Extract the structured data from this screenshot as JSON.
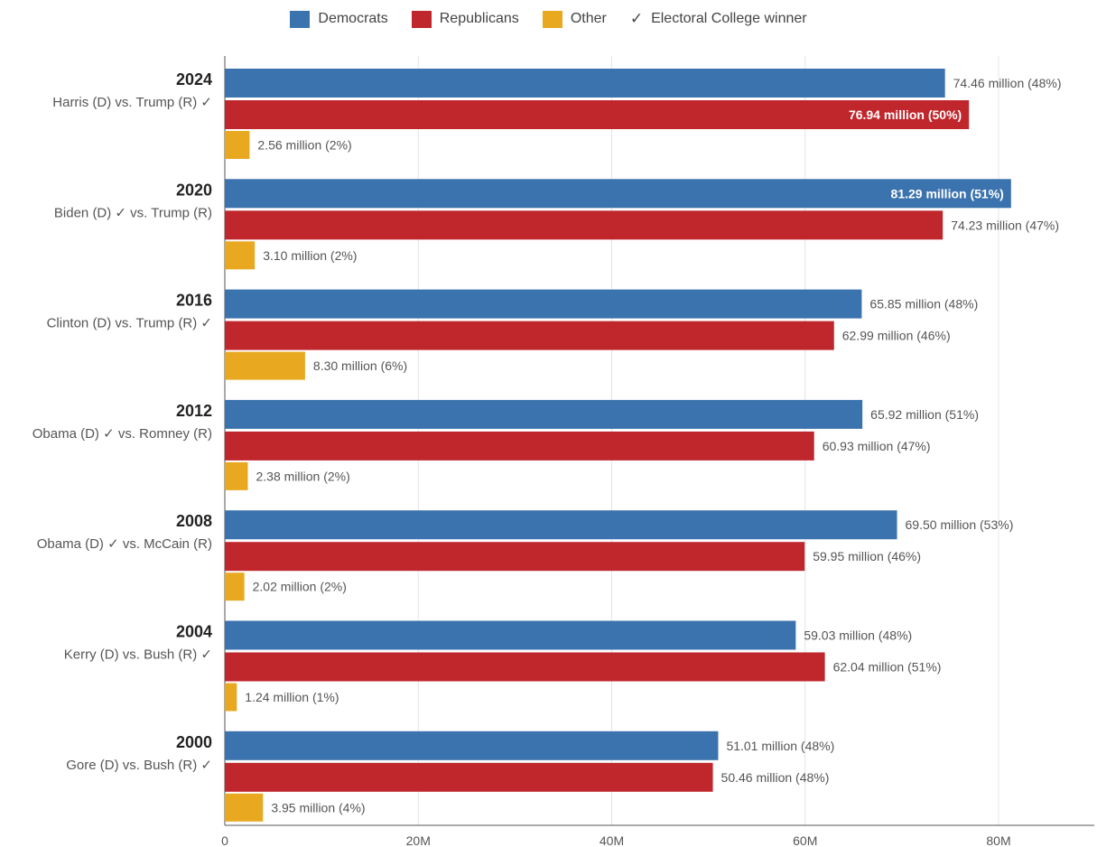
{
  "legend": {
    "items": [
      {
        "label": "Democrats",
        "color": "#3b73ae"
      },
      {
        "label": "Republicans",
        "color": "#c0272d"
      },
      {
        "label": "Other",
        "color": "#e8a921"
      }
    ],
    "winner_label": "Electoral College winner",
    "winner_symbol": "✓"
  },
  "chart_data": {
    "type": "bar",
    "orientation": "horizontal",
    "xlim": [
      0,
      90
    ],
    "x_ticks": [
      {
        "value": 0,
        "label": "0"
      },
      {
        "value": 20,
        "label": "20M"
      },
      {
        "value": 40,
        "label": "40M"
      },
      {
        "value": 60,
        "label": "60M"
      },
      {
        "value": 80,
        "label": "80M"
      }
    ],
    "grid": true,
    "legend_position": "top",
    "series": [
      {
        "name": "Democrats",
        "color": "#3b73ae"
      },
      {
        "name": "Republicans",
        "color": "#c0272d"
      },
      {
        "name": "Other",
        "color": "#e8a921"
      }
    ],
    "groups": [
      {
        "year": "2024",
        "matchup": "Harris (D) vs. Trump (R) ✓",
        "values": [
          74.46,
          76.94,
          2.56
        ],
        "labels": [
          "74.46 million (48%)",
          "76.94 million (50%)",
          "2.56 million (2%)"
        ],
        "label_inside": [
          false,
          true,
          false
        ]
      },
      {
        "year": "2020",
        "matchup": "Biden (D) ✓ vs. Trump (R)",
        "values": [
          81.29,
          74.23,
          3.1
        ],
        "labels": [
          "81.29 million (51%)",
          "74.23 million (47%)",
          "3.10 million (2%)"
        ],
        "label_inside": [
          true,
          false,
          false
        ]
      },
      {
        "year": "2016",
        "matchup": "Clinton (D) vs. Trump (R) ✓",
        "values": [
          65.85,
          62.99,
          8.3
        ],
        "labels": [
          "65.85 million (48%)",
          "62.99 million (46%)",
          "8.30 million (6%)"
        ],
        "label_inside": [
          false,
          false,
          false
        ]
      },
      {
        "year": "2012",
        "matchup": "Obama (D) ✓ vs. Romney (R)",
        "values": [
          65.92,
          60.93,
          2.38
        ],
        "labels": [
          "65.92 million (51%)",
          "60.93 million (47%)",
          "2.38 million (2%)"
        ],
        "label_inside": [
          false,
          false,
          false
        ]
      },
      {
        "year": "2008",
        "matchup": "Obama (D) ✓ vs. McCain (R)",
        "values": [
          69.5,
          59.95,
          2.02
        ],
        "labels": [
          "69.50 million (53%)",
          "59.95 million (46%)",
          "2.02 million (2%)"
        ],
        "label_inside": [
          false,
          false,
          false
        ]
      },
      {
        "year": "2004",
        "matchup": "Kerry (D) vs. Bush (R) ✓",
        "values": [
          59.03,
          62.04,
          1.24
        ],
        "labels": [
          "59.03 million (48%)",
          "62.04 million (51%)",
          "1.24 million (1%)"
        ],
        "label_inside": [
          false,
          false,
          false
        ]
      },
      {
        "year": "2000",
        "matchup": "Gore (D) vs. Bush (R) ✓",
        "values": [
          51.01,
          50.46,
          3.95
        ],
        "labels": [
          "51.01 million (48%)",
          "50.46 million (48%)",
          "3.95 million (4%)"
        ],
        "label_inside": [
          false,
          false,
          false
        ]
      }
    ]
  }
}
